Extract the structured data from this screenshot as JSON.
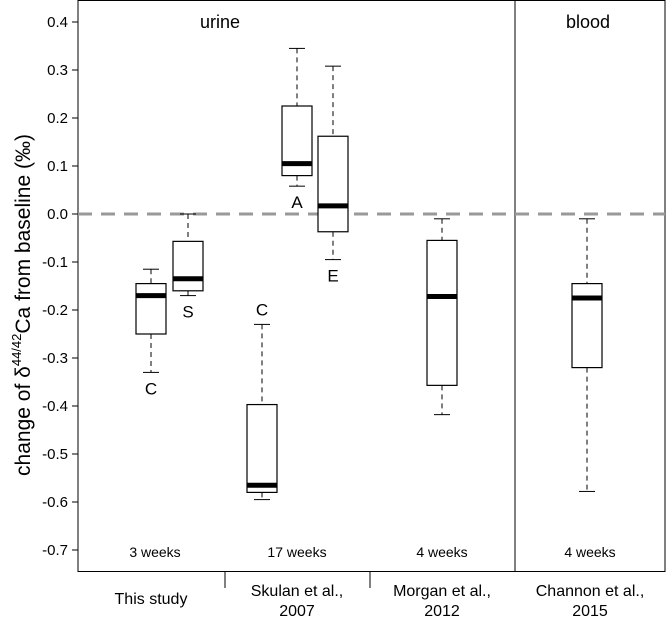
{
  "chart_data": {
    "type": "boxplot",
    "ylabel_prefix": "change of ",
    "ylabel_delta": "δ",
    "ylabel_superscript": "44/42",
    "ylabel_suffix": "Ca from baseline (‰)",
    "ylim": [
      -0.75,
      0.44
    ],
    "yticks": [
      0.4,
      0.3,
      0.2,
      0.1,
      0.0,
      -0.1,
      -0.2,
      -0.3,
      -0.4,
      -0.5,
      -0.6,
      -0.7
    ],
    "ytick_labels": [
      "0.4",
      "0.3",
      "0.2",
      "0.1",
      "0.0",
      "-0.1",
      "-0.2",
      "-0.3",
      "-0.4",
      "-0.5",
      "-0.6",
      "-0.7"
    ],
    "baseline": 0.0,
    "panels": [
      {
        "label": "urine",
        "groups": [
          0,
          1,
          2
        ]
      },
      {
        "label": "blood",
        "groups": [
          3
        ]
      }
    ],
    "groups": [
      {
        "name": "This study",
        "name_line2": "",
        "duration": "3 weeks"
      },
      {
        "name": "Skulan et al.,",
        "name_line2": "2007",
        "duration": "17 weeks"
      },
      {
        "name": "Morgan et al.,",
        "name_line2": "2012",
        "duration": "4 weeks"
      },
      {
        "name": "Channon et al.,",
        "name_line2": "2015",
        "duration": "4 weeks"
      }
    ],
    "boxes": [
      {
        "group": 0,
        "slot": "left",
        "label": "C",
        "label_pos": "below",
        "whisker_low": -0.33,
        "q1": -0.25,
        "median": -0.17,
        "q3": -0.145,
        "whisker_high": -0.115
      },
      {
        "group": 0,
        "slot": "right",
        "label": "S",
        "label_pos": "below",
        "whisker_low": -0.17,
        "q1": -0.16,
        "median": -0.135,
        "q3": -0.057,
        "whisker_high": 0.0
      },
      {
        "group": 1,
        "slot": "left",
        "label": "C",
        "label_pos": "above",
        "whisker_low": -0.595,
        "q1": -0.58,
        "median": -0.565,
        "q3": -0.397,
        "whisker_high": -0.23
      },
      {
        "group": 1,
        "slot": "mid",
        "label": "A",
        "label_pos": "below",
        "whisker_low": 0.058,
        "q1": 0.08,
        "median": 0.105,
        "q3": 0.225,
        "whisker_high": 0.345
      },
      {
        "group": 1,
        "slot": "right",
        "label": "E",
        "label_pos": "below",
        "whisker_low": -0.095,
        "q1": -0.037,
        "median": 0.017,
        "q3": 0.162,
        "whisker_high": 0.308
      },
      {
        "group": 2,
        "slot": "center",
        "label": "",
        "label_pos": "none",
        "whisker_low": -0.418,
        "q1": -0.357,
        "median": -0.172,
        "q3": -0.055,
        "whisker_high": -0.01
      },
      {
        "group": 3,
        "slot": "center",
        "label": "",
        "label_pos": "none",
        "whisker_low": -0.578,
        "q1": -0.32,
        "median": -0.175,
        "q3": -0.145,
        "whisker_high": -0.01
      }
    ]
  }
}
